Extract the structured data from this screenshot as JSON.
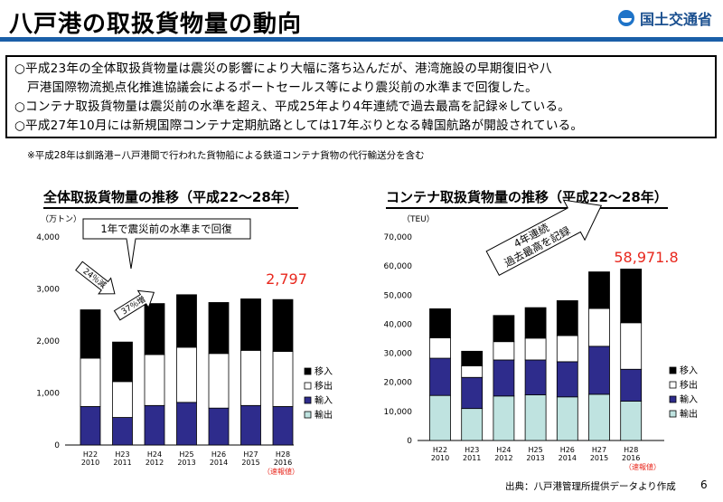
{
  "header": {
    "title": "八戸港の取扱貨物量の動向",
    "logo_text": "国土交通省",
    "accent_color": "#1a5fa8"
  },
  "summary": {
    "line1": "○平成23年の全体取扱貨物量は震災の影響により大幅に落ち込んだが、港湾施設の早期復旧や八",
    "line2": "戸港国際物流拠点化推進協議会によるポートセールス等により震災前の水準まで回復した。",
    "line3": "○コンテナ取扱貨物量は震災前の水準を超え、平成25年より4年連続で過去最高を記録※している。",
    "line4": "○平成27年10月には新規国際コンテナ定期航路としては17年ぶりとなる韓国航路が開設されている。"
  },
  "note": "※平成28年は釧路港−八戸港間で行われた貨物船による鉄道コンテナ貨物の代行輸送分を含む",
  "source": "出典：八戸港管理所提供データより作成",
  "page_number": "6",
  "chart_data": [
    {
      "type": "bar",
      "stacked": true,
      "title": "全体取扱貨物量の推移（平成22〜28年）",
      "unit": "（万トン）",
      "ylim": [
        0,
        4000
      ],
      "yticks": [
        "0",
        "1,000",
        "2,000",
        "3,000",
        "4,000"
      ],
      "categories": [
        "H22",
        "H23",
        "H24",
        "H25",
        "H26",
        "H27",
        "H28"
      ],
      "categories_sub": [
        "2010",
        "2011",
        "2012",
        "2013",
        "2014",
        "2015",
        "2016"
      ],
      "series": [
        {
          "name": "輸入",
          "color": "#2e2c8c",
          "values": [
            740,
            530,
            760,
            820,
            710,
            760,
            740
          ]
        },
        {
          "name": "移出",
          "color": "#ffffff",
          "values": [
            930,
            690,
            980,
            1060,
            1050,
            1060,
            1060
          ]
        },
        {
          "name": "移入",
          "color": "#000000",
          "values": [
            930,
            760,
            980,
            1010,
            980,
            990,
            997
          ]
        }
      ],
      "legend_order": [
        "移入",
        "移出",
        "輸入",
        "輸出"
      ],
      "legend_colors": [
        "#000000",
        "#ffffff",
        "#2e2c8c",
        "#bfe3e0"
      ],
      "highlight_value": "2,797",
      "prelim_label": "（速報値）",
      "callout": "1年で震災前の水準まで回復",
      "arrow_down_label": "24％減",
      "arrow_up_label": "37％増",
      "grid": false,
      "legend_position": "right"
    },
    {
      "type": "bar",
      "stacked": true,
      "title": "コンテナ取扱貨物量の推移（平成22〜28年）",
      "unit": "（TEU）",
      "ylim": [
        0,
        70000
      ],
      "yticks": [
        "0",
        "10,000",
        "20,000",
        "30,000",
        "40,000",
        "50,000",
        "60,000",
        "70,000"
      ],
      "categories": [
        "H22",
        "H23",
        "H24",
        "H25",
        "H26",
        "H27",
        "H28"
      ],
      "categories_sub": [
        "2010",
        "2011",
        "2012",
        "2013",
        "2014",
        "2015",
        "2016"
      ],
      "series": [
        {
          "name": "輸出",
          "color": "#bfe3e0",
          "values": [
            15500,
            11000,
            15300,
            15700,
            15000,
            15900,
            13500
          ]
        },
        {
          "name": "輸入",
          "color": "#2e2c8c",
          "values": [
            12800,
            10700,
            12400,
            12000,
            12100,
            16500,
            11000
          ]
        },
        {
          "name": "移出",
          "color": "#ffffff",
          "values": [
            7000,
            4000,
            6300,
            7500,
            9000,
            13000,
            16000
          ]
        },
        {
          "name": "移入",
          "color": "#000000",
          "values": [
            10000,
            5000,
            9000,
            10500,
            12000,
            12600,
            18471.8
          ]
        }
      ],
      "legend_order": [
        "移入",
        "移出",
        "輸入",
        "輸出"
      ],
      "legend_colors": [
        "#000000",
        "#ffffff",
        "#2e2c8c",
        "#bfe3e0"
      ],
      "highlight_value": "58,971.8",
      "prelim_label": "（速報値）",
      "callout": "4年連続\n過去最高を記録",
      "grid": false,
      "legend_position": "right"
    }
  ]
}
